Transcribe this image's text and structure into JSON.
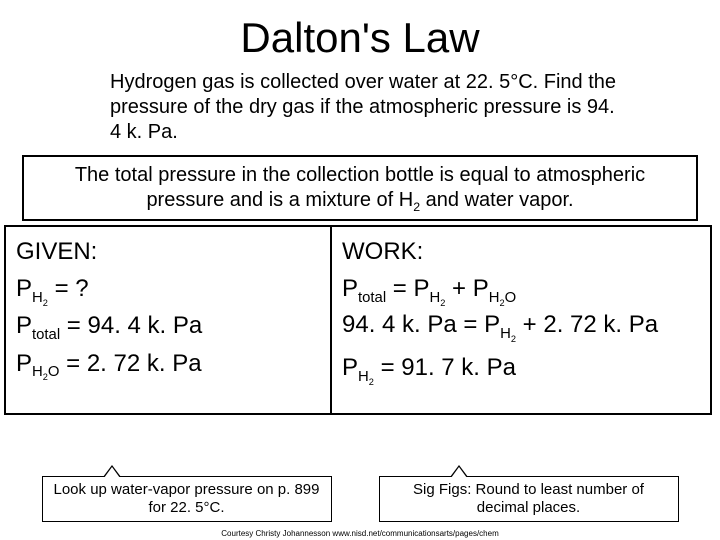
{
  "title": "Dalton's Law",
  "problem": "Hydrogen gas is collected over water at 22. 5°C. Find the pressure of the dry gas if the atmospheric pressure is 94. 4 k. Pa.",
  "explanation_html": "The total pressure in the collection bottle is equal to atmospheric pressure and is a mixture of H<sub>2</sub> and water vapor.",
  "given": {
    "heading": "GIVEN:",
    "l1_html": "P<sub>H<sub>2</sub></sub> = ?",
    "l2_html": "P<sub>total</sub> = 94. 4 k. Pa",
    "l3_html": "P<sub>H<sub>2</sub>O</sub> = 2. 72 k. Pa"
  },
  "work": {
    "heading": "WORK:",
    "l1_html": "P<sub>total</sub> = P<sub>H<sub>2</sub></sub> + P<sub>H<sub>2</sub>O</sub>",
    "l2_html": "94. 4 k. Pa = P<sub>H<sub>2</sub></sub> + 2. 72 k. Pa",
    "l3_html": "P<sub>H<sub>2</sub></sub> = 91. 7 k. Pa"
  },
  "callout_left": "Look up water-vapor pressure on p. 899 for 22. 5°C.",
  "callout_right": "Sig Figs: Round to least number of decimal places.",
  "credit": "Courtesy Christy Johannesson www.nisd.net/communicationsarts/pages/chem"
}
